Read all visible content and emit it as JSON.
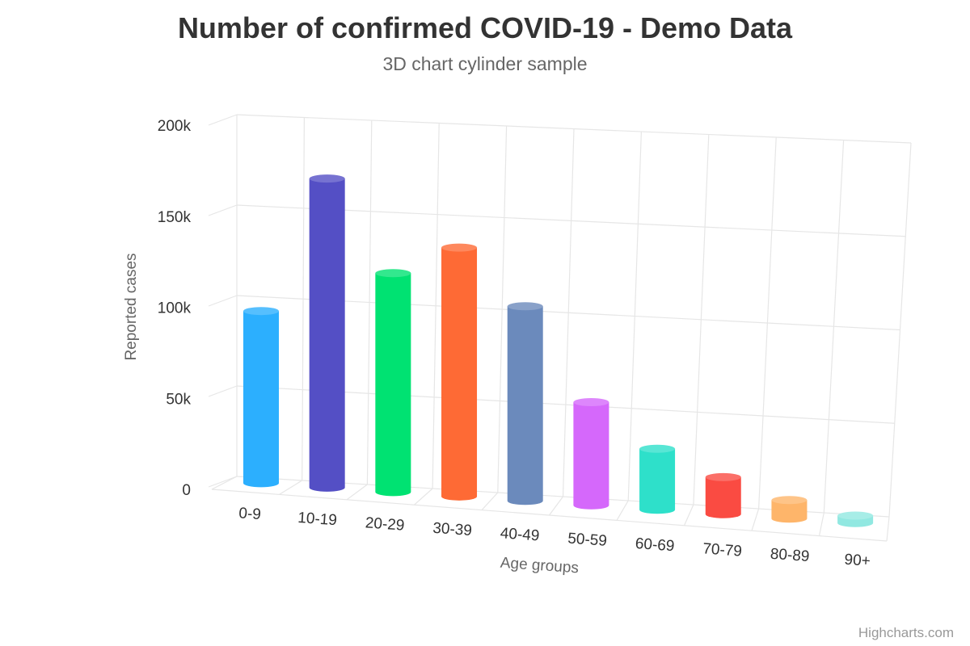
{
  "chart_data": {
    "type": "bar",
    "variant": "3d-cylinder",
    "title": "Number of confirmed COVID-19 - Demo Data",
    "subtitle": "3D chart cylinder sample",
    "xlabel": "Age groups",
    "ylabel": "Reported cases",
    "categories": [
      "0-9",
      "10-19",
      "20-29",
      "30-39",
      "40-49",
      "50-59",
      "60-69",
      "70-79",
      "80-89",
      "90+"
    ],
    "values": [
      95000,
      170000,
      120000,
      136000,
      106000,
      56000,
      33000,
      20000,
      10000,
      4000
    ],
    "colors": [
      "#2caffe",
      "#544fc5",
      "#00e272",
      "#fe6a35",
      "#6b8abc",
      "#d568fb",
      "#2ee0ca",
      "#fa4b42",
      "#feb56a",
      "#91e8e1"
    ],
    "ylim": [
      0,
      200000
    ],
    "yticks": [
      "0",
      "50k",
      "100k",
      "150k",
      "200k"
    ],
    "grid": true,
    "legend": "none"
  },
  "credits": "Highcharts.com"
}
